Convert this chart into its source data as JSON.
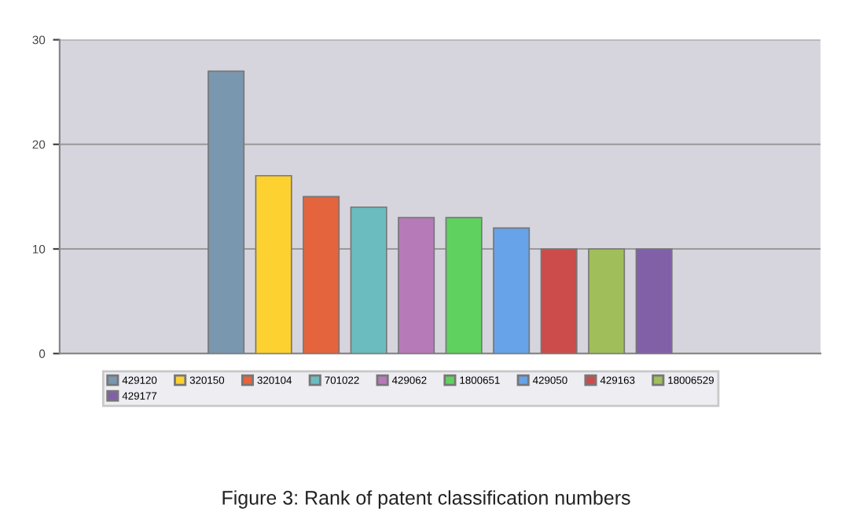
{
  "chart_data": {
    "type": "bar",
    "categories": [
      null,
      null,
      null,
      null,
      null,
      null,
      null,
      null,
      null,
      null,
      null,
      null,
      null,
      null,
      null,
      null
    ],
    "series": [
      {
        "name": "429120",
        "color": "#7a97b0",
        "values": [
          null,
          null,
          null,
          27,
          null,
          null,
          null,
          null,
          null,
          null,
          null,
          null,
          null,
          null,
          null,
          null
        ]
      },
      {
        "name": "320150",
        "color": "#fdd12f",
        "values": [
          null,
          null,
          null,
          null,
          17,
          null,
          null,
          null,
          null,
          null,
          null,
          null,
          null,
          null,
          null,
          null
        ]
      },
      {
        "name": "320104",
        "color": "#e4643d",
        "values": [
          null,
          null,
          null,
          null,
          null,
          15,
          null,
          null,
          null,
          null,
          null,
          null,
          null,
          null,
          null,
          null
        ]
      },
      {
        "name": "701022",
        "color": "#6abcbf",
        "values": [
          null,
          null,
          null,
          null,
          null,
          null,
          14,
          null,
          null,
          null,
          null,
          null,
          null,
          null,
          null,
          null
        ]
      },
      {
        "name": "429062",
        "color": "#b67ab9",
        "values": [
          null,
          null,
          null,
          null,
          null,
          null,
          null,
          13,
          null,
          null,
          null,
          null,
          null,
          null,
          null,
          null
        ]
      },
      {
        "name": "1800651",
        "color": "#5fd15f",
        "values": [
          null,
          null,
          null,
          null,
          null,
          null,
          null,
          null,
          13,
          null,
          null,
          null,
          null,
          null,
          null,
          null
        ]
      },
      {
        "name": "429050",
        "color": "#66a3e8",
        "values": [
          null,
          null,
          null,
          null,
          null,
          null,
          null,
          null,
          null,
          12,
          null,
          null,
          null,
          null,
          null,
          null
        ]
      },
      {
        "name": "429163",
        "color": "#cc4b4b",
        "values": [
          null,
          null,
          null,
          null,
          null,
          null,
          null,
          null,
          null,
          null,
          10,
          null,
          null,
          null,
          null,
          null
        ]
      },
      {
        "name": "18006529",
        "color": "#a0be5a",
        "values": [
          null,
          null,
          null,
          null,
          null,
          null,
          null,
          null,
          null,
          null,
          null,
          10,
          null,
          null,
          null,
          null
        ]
      },
      {
        "name": "429177",
        "color": "#8260a8",
        "values": [
          null,
          null,
          null,
          null,
          null,
          null,
          null,
          null,
          null,
          null,
          null,
          null,
          10,
          null,
          null,
          null
        ]
      }
    ],
    "ylim": [
      0,
      30
    ],
    "yticks": [
      0,
      10,
      20,
      30
    ],
    "grid": "y",
    "legend": "bottom",
    "annotations": [
      "Figure 3: Rank of patent classification numbers"
    ]
  }
}
